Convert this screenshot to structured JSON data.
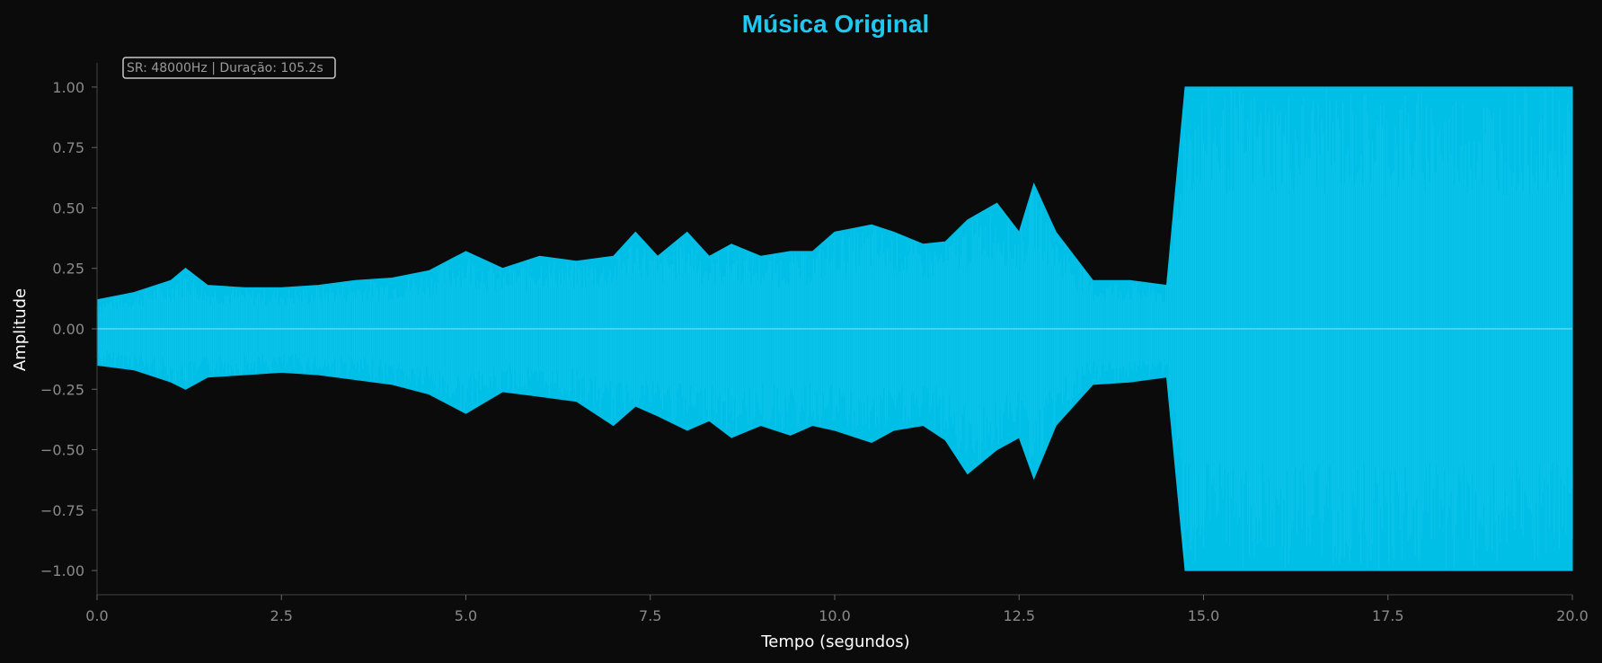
{
  "chart_data": {
    "type": "area",
    "title": "Música Original",
    "xlabel": "Tempo (segundos)",
    "ylabel": "Amplitude",
    "xlim": [
      0,
      20
    ],
    "ylim": [
      -1.1,
      1.1
    ],
    "xticks": [
      0,
      2.5,
      5,
      7.5,
      10,
      12.5,
      15,
      17.5,
      20
    ],
    "xtick_labels": [
      "0.0",
      "2.5",
      "5.0",
      "7.5",
      "10.0",
      "12.5",
      "15.0",
      "17.5",
      "20.0"
    ],
    "yticks": [
      1,
      0.75,
      0.5,
      0.25,
      0,
      -0.25,
      -0.5,
      -0.75,
      -1
    ],
    "ytick_labels": [
      "1.00",
      "0.75",
      "0.50",
      "0.25",
      "0.00",
      "−0.25",
      "−0.50",
      "−0.75",
      "−1.00"
    ],
    "annotation": "SR: 48000Hz | Duração: 105.2s",
    "grid": false,
    "colors": {
      "waveform": "#00bfe6",
      "title": "#1ec8ee",
      "background": "#0b0b0b",
      "axis": "#444444"
    },
    "series": [
      {
        "x": [
          0.0,
          0.5,
          1.0,
          1.2,
          1.5,
          2.0,
          2.5,
          3.0,
          3.5,
          4.0,
          4.5,
          5.0,
          5.5,
          6.0,
          6.5,
          7.0,
          7.3,
          7.6,
          8.0,
          8.3,
          8.6,
          9.0,
          9.4,
          9.7,
          10.0,
          10.5,
          10.8,
          11.2,
          11.5,
          11.8,
          12.2,
          12.5,
          12.7,
          13.0,
          13.5,
          14.0,
          14.5,
          14.75,
          15.0,
          16.0,
          17.0,
          18.0,
          19.0,
          20.0
        ],
        "upper": [
          0.12,
          0.15,
          0.2,
          0.25,
          0.18,
          0.17,
          0.17,
          0.18,
          0.2,
          0.21,
          0.24,
          0.32,
          0.25,
          0.3,
          0.28,
          0.3,
          0.4,
          0.3,
          0.4,
          0.3,
          0.35,
          0.3,
          0.32,
          0.32,
          0.4,
          0.43,
          0.4,
          0.35,
          0.36,
          0.45,
          0.52,
          0.4,
          0.6,
          0.4,
          0.2,
          0.2,
          0.18,
          1.0,
          1.0,
          1.0,
          1.0,
          1.0,
          1.0,
          1.0
        ],
        "lower": [
          -0.15,
          -0.17,
          -0.22,
          -0.25,
          -0.2,
          -0.19,
          -0.18,
          -0.19,
          -0.21,
          -0.23,
          -0.27,
          -0.35,
          -0.26,
          -0.28,
          -0.3,
          -0.4,
          -0.32,
          -0.36,
          -0.42,
          -0.38,
          -0.45,
          -0.4,
          -0.44,
          -0.4,
          -0.42,
          -0.47,
          -0.42,
          -0.4,
          -0.46,
          -0.6,
          -0.5,
          -0.45,
          -0.62,
          -0.4,
          -0.23,
          -0.22,
          -0.2,
          -1.0,
          -1.0,
          -1.0,
          -1.0,
          -1.0,
          -1.0,
          -1.0
        ]
      }
    ]
  }
}
